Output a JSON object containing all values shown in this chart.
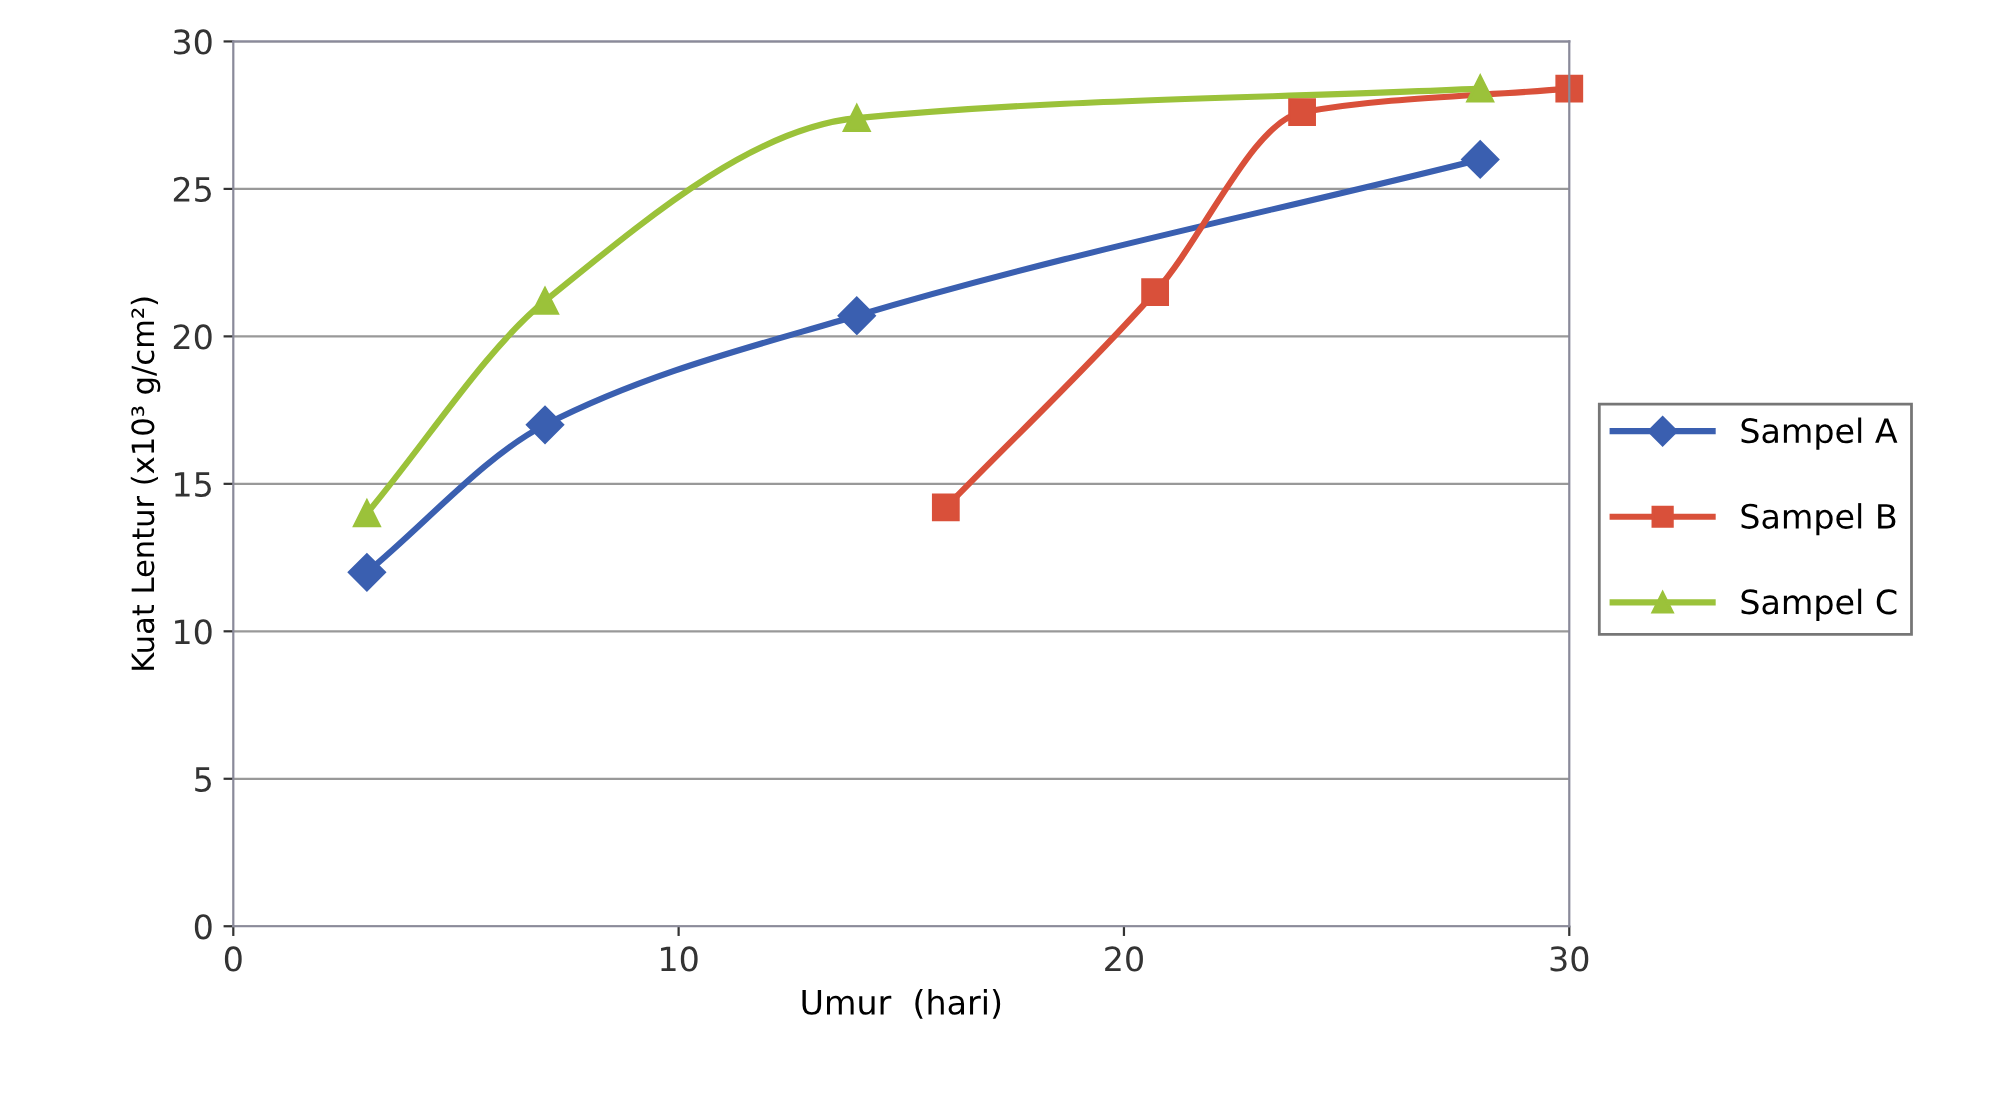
{
  "chart_data": {
    "type": "line",
    "xlabel": "Umur  (hari)",
    "ylabel": "Kuat Lentur (x10³ g/cm²)",
    "series": [
      {
        "name": "Sampel A",
        "color": "#3a5fb0",
        "marker": "diamond",
        "x": [
          3,
          7,
          14,
          28
        ],
        "values": [
          12,
          17,
          20.7,
          26
        ]
      },
      {
        "name": "Sampel B",
        "color": "#d9503a",
        "marker": "square",
        "x": [
          16,
          20.7,
          24,
          30
        ],
        "values": [
          14.2,
          21.5,
          27.6,
          28.4
        ]
      },
      {
        "name": "Sampel C",
        "color": "#9bc23a",
        "marker": "triangle",
        "x": [
          3,
          7,
          14,
          28
        ],
        "values": [
          14,
          21.2,
          27.4,
          28.4
        ]
      }
    ],
    "xlim": [
      0,
      30
    ],
    "xticks": [
      0,
      10,
      20,
      30
    ],
    "ylim": [
      0,
      30
    ],
    "yticks": [
      0,
      5,
      10,
      15,
      20,
      25,
      30
    ],
    "grid": "y",
    "legend": "right"
  }
}
